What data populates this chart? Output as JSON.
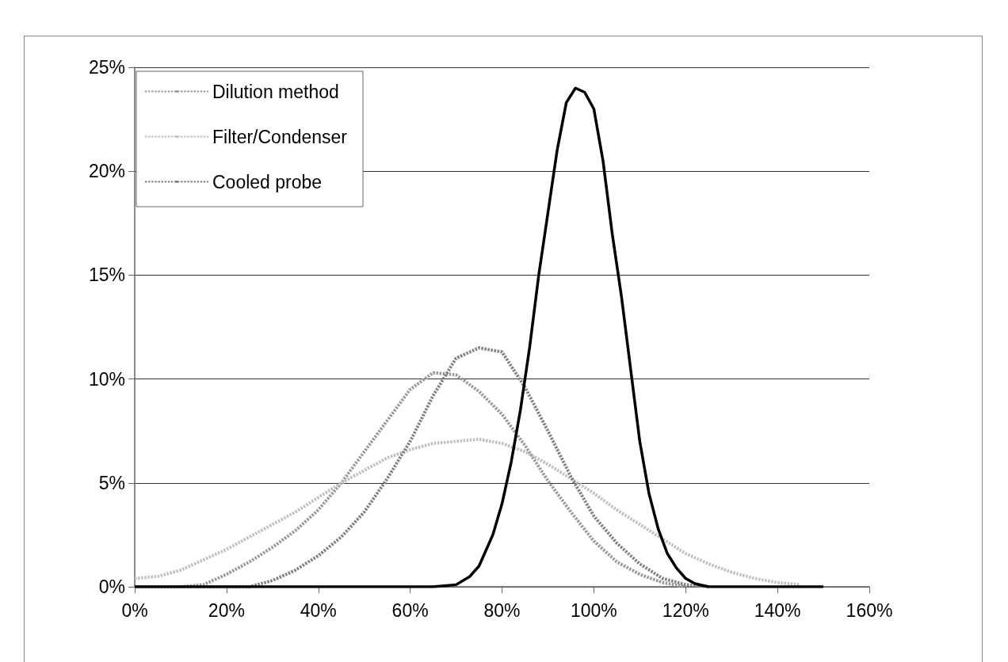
{
  "chart_data": {
    "type": "line",
    "xlim": [
      0,
      160
    ],
    "xticks": [
      {
        "value": 0,
        "label": "0%"
      },
      {
        "value": 20,
        "label": "20%"
      },
      {
        "value": 40,
        "label": "40%"
      },
      {
        "value": 60,
        "label": "60%"
      },
      {
        "value": 80,
        "label": "80%"
      },
      {
        "value": 100,
        "label": "100%"
      },
      {
        "value": 120,
        "label": "120%"
      },
      {
        "value": 140,
        "label": "140%"
      },
      {
        "value": 160,
        "label": "160%"
      }
    ],
    "ylim": [
      0,
      25
    ],
    "yticks": [
      {
        "value": 0,
        "label": "0%"
      },
      {
        "value": 5,
        "label": "5%"
      },
      {
        "value": 10,
        "label": "10%"
      },
      {
        "value": 15,
        "label": "15%"
      },
      {
        "value": 20,
        "label": "20%"
      },
      {
        "value": 25,
        "label": "25%"
      }
    ],
    "grid": "y",
    "legend": "top left",
    "marker": "none",
    "series": [
      {
        "color": "#000000",
        "line_style": "solid",
        "x": [
          0,
          10,
          20,
          30,
          40,
          50,
          60,
          65,
          70,
          73,
          75,
          78,
          80,
          82,
          84,
          86,
          88,
          90,
          92,
          94,
          96,
          98,
          100,
          102,
          104,
          106,
          108,
          110,
          112,
          114,
          116,
          118,
          120,
          122,
          125,
          130,
          140,
          150
        ],
        "values": [
          0,
          0,
          0,
          0,
          0,
          0,
          0,
          0,
          0.1,
          0.5,
          1,
          2.5,
          4,
          6,
          8.5,
          11.5,
          15,
          18,
          21,
          23.3,
          24,
          23.8,
          23,
          20.5,
          17,
          14,
          10.5,
          7,
          4.5,
          2.8,
          1.6,
          0.9,
          0.4,
          0.15,
          0,
          0,
          0,
          0
        ]
      },
      {
        "name": "Dilution method",
        "color": "#999999",
        "line_style": "dashed",
        "x": [
          0,
          5,
          10,
          15,
          20,
          25,
          30,
          35,
          40,
          45,
          50,
          55,
          60,
          65,
          70,
          75,
          80,
          85,
          90,
          95,
          100,
          105,
          110,
          115,
          120
        ],
        "values": [
          0,
          0,
          0,
          0.1,
          0.6,
          1.2,
          1.9,
          2.7,
          3.7,
          5.0,
          6.5,
          8.0,
          9.5,
          10.3,
          10.2,
          9.4,
          8.3,
          6.8,
          5.1,
          3.6,
          2.2,
          1.2,
          0.6,
          0.2,
          0
        ]
      },
      {
        "name": "Filter/Condenser",
        "color": "#c0c0c0",
        "line_style": "dashed",
        "x": [
          0,
          5,
          10,
          15,
          20,
          25,
          30,
          35,
          40,
          45,
          50,
          55,
          60,
          65,
          70,
          75,
          80,
          85,
          90,
          95,
          100,
          105,
          110,
          115,
          120,
          125,
          130,
          135,
          140,
          145
        ],
        "values": [
          0.4,
          0.5,
          0.8,
          1.3,
          1.8,
          2.4,
          3.0,
          3.6,
          4.3,
          5.0,
          5.6,
          6.2,
          6.6,
          6.9,
          7.0,
          7.1,
          6.9,
          6.5,
          5.9,
          5.2,
          4.5,
          3.7,
          3.0,
          2.3,
          1.6,
          1.1,
          0.7,
          0.4,
          0.2,
          0.1
        ]
      },
      {
        "name": "Cooled probe",
        "color": "#808080",
        "line_style": "dashed",
        "x": [
          0,
          5,
          10,
          15,
          20,
          25,
          30,
          35,
          40,
          45,
          50,
          55,
          60,
          65,
          70,
          75,
          80,
          85,
          90,
          95,
          100,
          105,
          110,
          115,
          120,
          125
        ],
        "values": [
          0,
          0,
          0,
          0,
          0,
          0,
          0.3,
          0.8,
          1.5,
          2.4,
          3.6,
          5.2,
          7.0,
          9.2,
          11.0,
          11.5,
          11.3,
          9.6,
          7.5,
          5.3,
          3.4,
          2.1,
          1.1,
          0.4,
          0.1,
          0
        ]
      }
    ]
  }
}
